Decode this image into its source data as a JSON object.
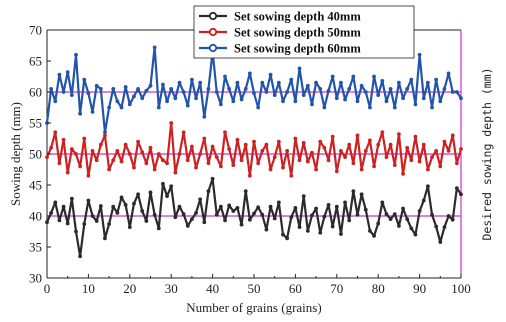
{
  "chart_data": {
    "type": "line",
    "xlabel": "Number of grains (grains)",
    "ylabel": "Sowing depth (mm)",
    "ylabel_right": "Desired sowing depth (mm)",
    "xlim": [
      0,
      100
    ],
    "ylim": [
      30,
      70
    ],
    "x_ticks": [
      0,
      10,
      20,
      30,
      40,
      50,
      60,
      70,
      80,
      90,
      100
    ],
    "y_ticks": [
      30,
      35,
      40,
      45,
      50,
      55,
      60,
      65,
      70
    ],
    "legend_position": "top-center",
    "reference_lines": [
      {
        "value": 40,
        "color": "#cc33cc"
      },
      {
        "value": 50,
        "color": "#cc33cc"
      },
      {
        "value": 60,
        "color": "#cc33cc"
      }
    ],
    "series": [
      {
        "name": "Set sowing depth 40mm",
        "color": "#2b2b2b",
        "values": [
          39.0,
          40.5,
          42.2,
          39.3,
          41.5,
          38.8,
          42.8,
          37.5,
          33.5,
          38.7,
          42.5,
          40.0,
          39.2,
          41.6,
          36.4,
          38.7,
          41.5,
          40.5,
          43.0,
          41.8,
          38.2,
          42.0,
          43.5,
          40.8,
          39.2,
          43.8,
          40.2,
          38.0,
          45.2,
          43.2,
          44.8,
          39.8,
          41.5,
          40.3,
          38.4,
          39.5,
          40.5,
          42.7,
          39.0,
          44.0,
          46.0,
          40.2,
          41.5,
          39.3,
          41.7,
          40.8,
          41.3,
          38.6,
          44.0,
          39.4,
          40.4,
          41.4,
          40.2,
          37.8,
          41.5,
          39.6,
          42.2,
          37.0,
          36.4,
          39.8,
          41.3,
          38.2,
          43.2,
          37.6,
          40.1,
          41.2,
          37.3,
          39.9,
          41.8,
          38.3,
          41.5,
          37.1,
          42.2,
          39.3,
          44.0,
          40.2,
          43.5,
          41.0,
          37.6,
          36.8,
          38.8,
          42.2,
          40.3,
          39.5,
          40.3,
          38.4,
          41.2,
          39.5,
          38.0,
          37.0,
          40.8,
          42.5,
          44.8,
          40.2,
          38.3,
          35.8,
          38.2,
          40.0,
          39.4,
          44.5,
          43.5
        ]
      },
      {
        "name": "Set sowing depth 50mm",
        "color": "#cc2222",
        "values": [
          49.5,
          51.0,
          53.5,
          48.5,
          52.3,
          47.0,
          50.8,
          50.0,
          48.0,
          52.5,
          46.5,
          50.5,
          49.0,
          51.5,
          53.0,
          47.5,
          49.0,
          50.5,
          48.8,
          51.5,
          50.0,
          47.8,
          52.0,
          50.3,
          48.5,
          51.0,
          47.5,
          50.0,
          49.0,
          48.5,
          55.0,
          47.0,
          50.0,
          53.5,
          49.0,
          51.2,
          47.8,
          50.0,
          52.5,
          48.5,
          51.2,
          49.5,
          48.0,
          53.5,
          50.8,
          48.2,
          52.3,
          49.0,
          51.5,
          46.5,
          52.0,
          48.5,
          50.5,
          51.5,
          47.5,
          49.5,
          52.0,
          47.8,
          50.5,
          46.5,
          52.5,
          49.0,
          51.8,
          48.8,
          50.2,
          47.5,
          52.0,
          51.0,
          49.0,
          52.8,
          47.2,
          50.5,
          49.5,
          51.5,
          48.5,
          53.0,
          47.5,
          50.5,
          52.2,
          48.0,
          51.5,
          53.5,
          49.5,
          51.5,
          48.2,
          53.2,
          46.8,
          51.0,
          49.0,
          52.8,
          48.8,
          51.5,
          47.5,
          49.5,
          50.5,
          48.0,
          52.0,
          50.5,
          53.0,
          48.5,
          50.8
        ]
      },
      {
        "name": "Set sowing depth 60mm",
        "color": "#2255aa",
        "values": [
          55.0,
          60.5,
          58.5,
          62.8,
          60.0,
          63.2,
          59.5,
          66.0,
          56.5,
          62.0,
          59.8,
          56.8,
          61.0,
          60.5,
          53.5,
          57.5,
          60.5,
          58.5,
          57.5,
          60.8,
          58.0,
          59.3,
          60.5,
          59.0,
          60.2,
          61.0,
          67.2,
          57.5,
          61.2,
          58.5,
          60.5,
          59.0,
          61.5,
          60.0,
          57.8,
          62.0,
          59.0,
          61.5,
          56.0,
          60.5,
          66.5,
          60.0,
          58.0,
          62.5,
          60.5,
          58.5,
          61.5,
          58.8,
          60.5,
          63.0,
          59.8,
          57.5,
          61.5,
          60.0,
          62.8,
          59.5,
          61.5,
          58.5,
          60.0,
          62.0,
          58.5,
          63.8,
          59.5,
          61.0,
          58.0,
          61.5,
          60.5,
          57.5,
          60.2,
          62.5,
          59.0,
          61.5,
          58.8,
          60.5,
          62.5,
          58.5,
          61.0,
          60.0,
          57.5,
          62.5,
          59.5,
          61.8,
          58.5,
          60.5,
          57.5,
          61.5,
          59.0,
          60.5,
          62.0,
          58.0,
          66.0,
          59.0,
          61.5,
          57.5,
          62.0,
          58.5,
          60.5,
          63.0,
          60.0,
          60.0,
          59.0
        ]
      }
    ]
  }
}
